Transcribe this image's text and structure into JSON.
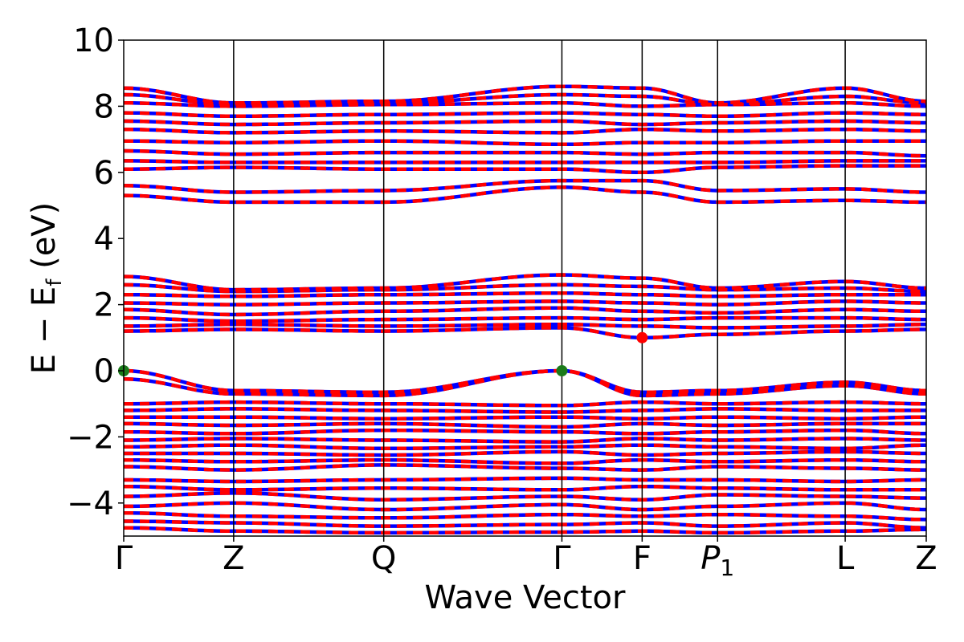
{
  "chart_data": {
    "type": "line",
    "xlabel": "Wave Vector",
    "ylabel_main": "E − E",
    "ylabel_sub": "f",
    "ylabel_unit": " (eV)",
    "ylim": [
      -5,
      10
    ],
    "yticks": [
      -4,
      -2,
      0,
      2,
      4,
      6,
      8,
      10
    ],
    "ytick_labels": [
      "−4",
      "−2",
      "0",
      "2",
      "4",
      "6",
      "8",
      "10"
    ],
    "kpoints": [
      {
        "label": "Γ",
        "sub": "",
        "italic": false,
        "x": 0
      },
      {
        "label": "Z",
        "sub": "",
        "italic": false,
        "x": 0.137
      },
      {
        "label": "Q",
        "sub": "",
        "italic": false,
        "x": 0.324
      },
      {
        "label": "Γ",
        "sub": "",
        "italic": false,
        "x": 0.546
      },
      {
        "label": "F",
        "sub": "",
        "italic": false,
        "x": 0.646
      },
      {
        "label": "P",
        "sub": "1",
        "italic": true,
        "x": 0.74
      },
      {
        "label": "L",
        "sub": "",
        "italic": false,
        "x": 0.899
      },
      {
        "label": "Z",
        "sub": "",
        "italic": false,
        "x": 1
      }
    ],
    "series": [
      {
        "color": "#0000ff",
        "style": "solid",
        "bands": [
          {
            "energies": [
              -4.75,
              -4.85,
              -4.9,
              -4.88,
              -4.85,
              -4.9,
              -4.85,
              -4.8
            ]
          },
          {
            "energies": [
              -4.55,
              -4.6,
              -4.7,
              -4.65,
              -4.6,
              -4.7,
              -4.6,
              -4.75
            ]
          },
          {
            "energies": [
              -4.3,
              -4.4,
              -4.45,
              -4.35,
              -4.4,
              -4.35,
              -4.4,
              -4.5
            ]
          },
          {
            "energies": [
              -4.1,
              -4.0,
              -4.2,
              -4.05,
              -4.2,
              -4.1,
              -4.0,
              -4.2
            ]
          },
          {
            "energies": [
              -3.8,
              -3.7,
              -3.9,
              -3.8,
              -3.9,
              -3.75,
              -3.8,
              -3.85
            ]
          },
          {
            "energies": [
              -3.5,
              -3.6,
              -3.55,
              -3.6,
              -3.5,
              -3.55,
              -3.6,
              -3.6
            ]
          },
          {
            "energies": [
              -3.3,
              -3.35,
              -3.3,
              -3.25,
              -3.3,
              -3.3,
              -3.35,
              -3.3
            ]
          },
          {
            "energies": [
              -2.9,
              -3.0,
              -2.85,
              -2.95,
              -3.0,
              -2.9,
              -2.95,
              -3.0
            ]
          },
          {
            "energies": [
              -2.7,
              -2.75,
              -2.7,
              -2.8,
              -2.7,
              -2.75,
              -2.7,
              -2.75
            ]
          },
          {
            "energies": [
              -2.5,
              -2.5,
              -2.55,
              -2.45,
              -2.55,
              -2.5,
              -2.45,
              -2.5
            ]
          },
          {
            "energies": [
              -2.3,
              -2.25,
              -2.35,
              -2.3,
              -2.25,
              -2.3,
              -2.35,
              -2.25
            ]
          },
          {
            "energies": [
              -2.1,
              -2.05,
              -2.1,
              -2.15,
              -2.05,
              -2.1,
              -2.05,
              -2.1
            ]
          },
          {
            "energies": [
              -1.85,
              -1.9,
              -1.8,
              -1.85,
              -1.9,
              -1.85,
              -1.8,
              -1.9
            ]
          },
          {
            "energies": [
              -1.6,
              -1.65,
              -1.6,
              -1.7,
              -1.6,
              -1.65,
              -1.6,
              -1.6
            ]
          },
          {
            "energies": [
              -1.4,
              -1.4,
              -1.45,
              -1.4,
              -1.45,
              -1.4,
              -1.45,
              -1.4
            ]
          },
          {
            "energies": [
              -1.2,
              -1.15,
              -1.2,
              -1.25,
              -1.2,
              -1.15,
              -1.2,
              -1.2
            ]
          },
          {
            "energies": [
              -1.0,
              -0.95,
              -1.0,
              -1.05,
              -0.95,
              -1.0,
              -0.95,
              -1.0
            ]
          },
          {
            "energies": [
              -0.25,
              -0.7,
              -0.75,
              0.0,
              -0.75,
              -0.7,
              -0.45,
              -0.7
            ]
          },
          {
            "energies": [
              0.0,
              -0.6,
              -0.65,
              0.0,
              -0.65,
              -0.6,
              -0.35,
              -0.6
            ]
          },
          {
            "energies": [
              1.2,
              1.25,
              1.2,
              1.3,
              1.0,
              1.1,
              1.2,
              1.25
            ]
          },
          {
            "energies": [
              1.35,
              1.4,
              1.35,
              1.4,
              1.35,
              1.3,
              1.35,
              1.4
            ]
          },
          {
            "energies": [
              1.6,
              1.5,
              1.55,
              1.6,
              1.55,
              1.6,
              1.6,
              1.55
            ]
          },
          {
            "energies": [
              1.85,
              1.7,
              1.8,
              1.9,
              1.8,
              1.75,
              1.85,
              1.8
            ]
          },
          {
            "energies": [
              2.05,
              2.0,
              2.05,
              2.1,
              2.05,
              2.0,
              2.1,
              2.05
            ]
          },
          {
            "energies": [
              2.3,
              2.25,
              2.3,
              2.35,
              2.3,
              2.25,
              2.3,
              2.3
            ]
          },
          {
            "energies": [
              2.6,
              2.4,
              2.45,
              2.6,
              2.55,
              2.45,
              2.5,
              2.4
            ]
          },
          {
            "energies": [
              2.85,
              2.45,
              2.5,
              2.9,
              2.8,
              2.5,
              2.7,
              2.5
            ]
          },
          {
            "energies": [
              5.3,
              5.1,
              5.1,
              5.55,
              5.4,
              5.1,
              5.15,
              5.1
            ]
          },
          {
            "energies": [
              5.6,
              5.4,
              5.45,
              5.75,
              5.75,
              5.45,
              5.5,
              5.4
            ]
          },
          {
            "energies": [
              6.1,
              6.15,
              6.1,
              6.1,
              6.0,
              6.15,
              6.2,
              6.2
            ]
          },
          {
            "energies": [
              6.35,
              6.3,
              6.3,
              6.3,
              6.3,
              6.3,
              6.35,
              6.35
            ]
          },
          {
            "energies": [
              6.65,
              6.55,
              6.6,
              6.6,
              6.55,
              6.6,
              6.6,
              6.5
            ]
          },
          {
            "energies": [
              6.95,
              6.9,
              6.95,
              6.85,
              6.9,
              6.9,
              6.95,
              6.95
            ]
          },
          {
            "energies": [
              7.3,
              7.2,
              7.25,
              7.2,
              7.3,
              7.25,
              7.3,
              7.25
            ]
          },
          {
            "energies": [
              7.55,
              7.45,
              7.5,
              7.55,
              7.45,
              7.5,
              7.55,
              7.5
            ]
          },
          {
            "energies": [
              7.8,
              7.7,
              7.75,
              7.8,
              7.75,
              7.7,
              7.8,
              7.75
            ]
          },
          {
            "energies": [
              8.1,
              8.0,
              8.05,
              8.1,
              8.0,
              8.05,
              8.1,
              8.0
            ]
          },
          {
            "energies": [
              8.35,
              8.05,
              8.1,
              8.35,
              8.3,
              8.05,
              8.3,
              8.1
            ]
          },
          {
            "energies": [
              8.55,
              8.1,
              8.15,
              8.6,
              8.55,
              8.1,
              8.55,
              8.15
            ]
          }
        ]
      },
      {
        "color": "#ff0000",
        "style": "dashed",
        "bands": [
          {
            "energies": [
              -4.75,
              -4.85,
              -4.9,
              -4.88,
              -4.85,
              -4.9,
              -4.85,
              -4.8
            ]
          },
          {
            "energies": [
              -4.55,
              -4.6,
              -4.7,
              -4.65,
              -4.6,
              -4.7,
              -4.6,
              -4.75
            ]
          },
          {
            "energies": [
              -4.3,
              -4.4,
              -4.45,
              -4.35,
              -4.4,
              -4.35,
              -4.4,
              -4.5
            ]
          },
          {
            "energies": [
              -4.1,
              -4.0,
              -4.2,
              -4.05,
              -4.2,
              -4.1,
              -4.0,
              -4.2
            ]
          },
          {
            "energies": [
              -3.8,
              -3.7,
              -3.9,
              -3.8,
              -3.9,
              -3.75,
              -3.8,
              -3.85
            ]
          },
          {
            "energies": [
              -3.5,
              -3.6,
              -3.55,
              -3.6,
              -3.5,
              -3.55,
              -3.6,
              -3.6
            ]
          },
          {
            "energies": [
              -3.3,
              -3.35,
              -3.3,
              -3.25,
              -3.3,
              -3.3,
              -3.35,
              -3.3
            ]
          },
          {
            "energies": [
              -2.9,
              -3.0,
              -2.85,
              -2.95,
              -3.0,
              -2.9,
              -2.95,
              -3.0
            ]
          },
          {
            "energies": [
              -2.7,
              -2.75,
              -2.7,
              -2.8,
              -2.7,
              -2.75,
              -2.7,
              -2.75
            ]
          },
          {
            "energies": [
              -2.5,
              -2.5,
              -2.55,
              -2.45,
              -2.55,
              -2.5,
              -2.45,
              -2.5
            ]
          },
          {
            "energies": [
              -2.3,
              -2.25,
              -2.35,
              -2.3,
              -2.25,
              -2.3,
              -2.35,
              -2.25
            ]
          },
          {
            "energies": [
              -2.1,
              -2.05,
              -2.1,
              -2.15,
              -2.05,
              -2.1,
              -2.05,
              -2.1
            ]
          },
          {
            "energies": [
              -1.85,
              -1.9,
              -1.8,
              -1.85,
              -1.9,
              -1.85,
              -1.8,
              -1.9
            ]
          },
          {
            "energies": [
              -1.6,
              -1.65,
              -1.6,
              -1.7,
              -1.6,
              -1.65,
              -1.6,
              -1.6
            ]
          },
          {
            "energies": [
              -1.4,
              -1.4,
              -1.45,
              -1.4,
              -1.45,
              -1.4,
              -1.45,
              -1.4
            ]
          },
          {
            "energies": [
              -1.2,
              -1.15,
              -1.2,
              -1.25,
              -1.2,
              -1.15,
              -1.2,
              -1.2
            ]
          },
          {
            "energies": [
              -1.0,
              -0.95,
              -1.0,
              -1.05,
              -0.95,
              -1.0,
              -0.95,
              -1.0
            ]
          },
          {
            "energies": [
              -0.25,
              -0.7,
              -0.75,
              0.0,
              -0.75,
              -0.7,
              -0.45,
              -0.7
            ]
          },
          {
            "energies": [
              0.0,
              -0.6,
              -0.65,
              0.0,
              -0.65,
              -0.6,
              -0.35,
              -0.6
            ]
          },
          {
            "energies": [
              1.2,
              1.25,
              1.2,
              1.3,
              1.0,
              1.1,
              1.2,
              1.25
            ]
          },
          {
            "energies": [
              1.35,
              1.4,
              1.35,
              1.4,
              1.35,
              1.3,
              1.35,
              1.4
            ]
          },
          {
            "energies": [
              1.6,
              1.5,
              1.55,
              1.6,
              1.55,
              1.6,
              1.6,
              1.55
            ]
          },
          {
            "energies": [
              1.85,
              1.7,
              1.8,
              1.9,
              1.8,
              1.75,
              1.85,
              1.8
            ]
          },
          {
            "energies": [
              2.05,
              2.0,
              2.05,
              2.1,
              2.05,
              2.0,
              2.1,
              2.05
            ]
          },
          {
            "energies": [
              2.3,
              2.25,
              2.3,
              2.35,
              2.3,
              2.25,
              2.3,
              2.3
            ]
          },
          {
            "energies": [
              2.6,
              2.4,
              2.45,
              2.6,
              2.55,
              2.45,
              2.5,
              2.4
            ]
          },
          {
            "energies": [
              2.85,
              2.45,
              2.5,
              2.9,
              2.8,
              2.5,
              2.7,
              2.5
            ]
          },
          {
            "energies": [
              5.3,
              5.1,
              5.1,
              5.55,
              5.4,
              5.1,
              5.15,
              5.1
            ]
          },
          {
            "energies": [
              5.6,
              5.4,
              5.45,
              5.75,
              5.75,
              5.45,
              5.5,
              5.4
            ]
          },
          {
            "energies": [
              6.1,
              6.15,
              6.1,
              6.1,
              6.0,
              6.15,
              6.2,
              6.2
            ]
          },
          {
            "energies": [
              6.35,
              6.3,
              6.3,
              6.3,
              6.3,
              6.3,
              6.35,
              6.35
            ]
          },
          {
            "energies": [
              6.65,
              6.55,
              6.6,
              6.6,
              6.55,
              6.6,
              6.6,
              6.5
            ]
          },
          {
            "energies": [
              6.95,
              6.9,
              6.95,
              6.85,
              6.9,
              6.9,
              6.95,
              6.95
            ]
          },
          {
            "energies": [
              7.3,
              7.2,
              7.25,
              7.2,
              7.3,
              7.25,
              7.3,
              7.25
            ]
          },
          {
            "energies": [
              7.55,
              7.45,
              7.5,
              7.55,
              7.45,
              7.5,
              7.55,
              7.5
            ]
          },
          {
            "energies": [
              7.8,
              7.7,
              7.75,
              7.8,
              7.75,
              7.7,
              7.8,
              7.75
            ]
          },
          {
            "energies": [
              8.1,
              8.0,
              8.05,
              8.1,
              8.0,
              8.05,
              8.1,
              8.0
            ]
          },
          {
            "energies": [
              8.35,
              8.05,
              8.1,
              8.35,
              8.3,
              8.05,
              8.3,
              8.1
            ]
          },
          {
            "energies": [
              8.55,
              8.1,
              8.15,
              8.6,
              8.55,
              8.1,
              8.55,
              8.15
            ]
          }
        ]
      }
    ],
    "markers": [
      {
        "kind": "vbm",
        "x": 0,
        "y": 0.0,
        "color": "#1a7a1a"
      },
      {
        "kind": "vbm",
        "x": 0.546,
        "y": 0.0,
        "color": "#1a7a1a"
      },
      {
        "kind": "cbm",
        "x": 0.646,
        "y": 1.0,
        "color": "#ff0000"
      }
    ],
    "grid": false,
    "legend": "none"
  }
}
